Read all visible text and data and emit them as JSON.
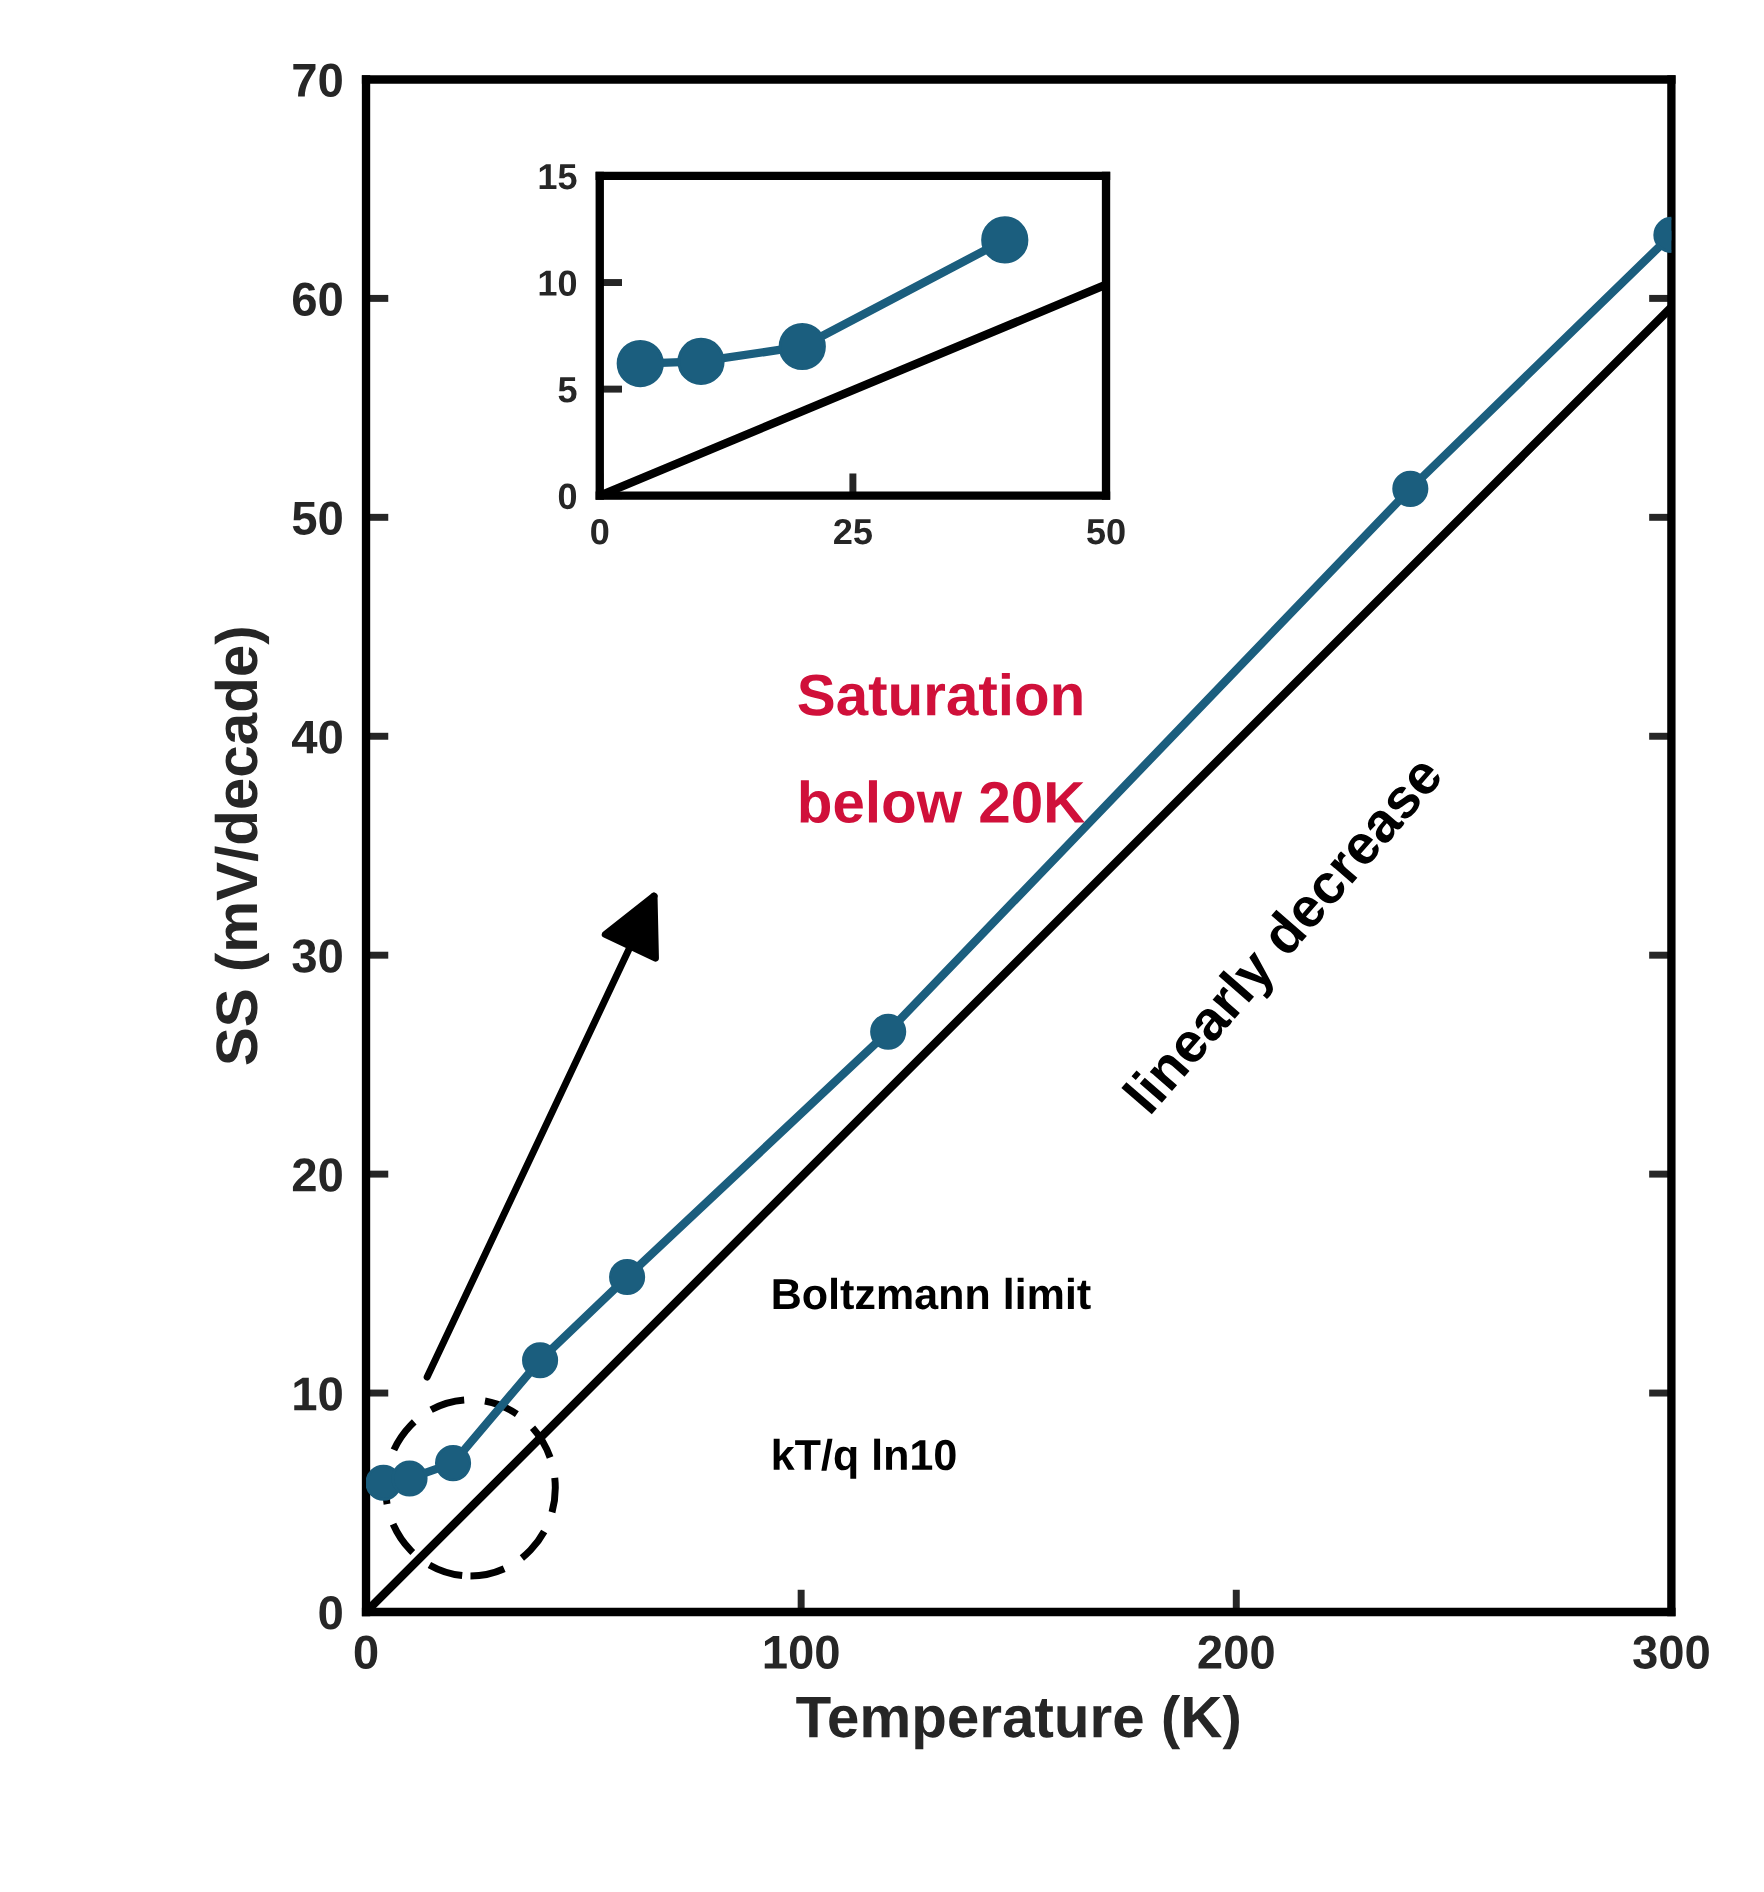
{
  "chart_data": [
    {
      "type": "line",
      "xlabel": "Temperature (K)",
      "ylabel": "SS (mV/decade)",
      "xlim": [
        0,
        300
      ],
      "xticks": [
        0,
        100,
        200,
        300
      ],
      "ylim": [
        0,
        70
      ],
      "yticks": [
        0,
        10,
        20,
        30,
        40,
        50,
        60,
        70
      ],
      "grid": false,
      "marker": "circle",
      "line_style": "solid",
      "series": [
        {
          "color": "#1b5e7e",
          "x": [
            4,
            10,
            20,
            40,
            60,
            120,
            240,
            300
          ],
          "values": [
            5.9,
            6.1,
            6.8,
            11.5,
            15.3,
            26.5,
            51.3,
            62.9
          ]
        },
        {
          "color": "#000000",
          "marker": "none",
          "x": [
            0,
            300
          ],
          "values": [
            0,
            59.6
          ]
        }
      ],
      "annotations": [
        "Boltzmann limit",
        "kT/q ln10",
        "linearly decrease",
        "Saturation",
        "below 20K"
      ]
    },
    {
      "type": "line",
      "xlim": [
        0,
        50
      ],
      "xticks": [
        0,
        25,
        50
      ],
      "ylim": [
        0,
        15
      ],
      "yticks": [
        0,
        5,
        10,
        15
      ],
      "grid": false,
      "marker": "circle",
      "line_style": "solid",
      "series": [
        {
          "color": "#1b5e7e",
          "x": [
            4,
            10,
            20,
            40
          ],
          "values": [
            6.2,
            6.3,
            7.0,
            12.0
          ]
        },
        {
          "color": "#000000",
          "marker": "none",
          "x": [
            0,
            50
          ],
          "values": [
            0,
            9.9
          ]
        }
      ]
    }
  ]
}
